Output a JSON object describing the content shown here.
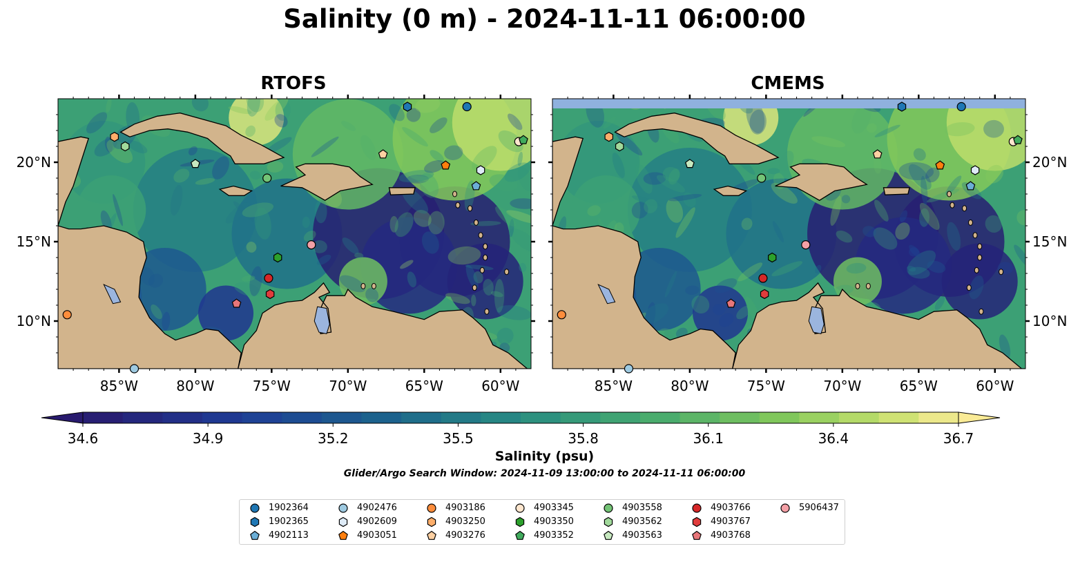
{
  "title": "Salinity (0 m) - 2024-11-11 06:00:00",
  "panels": [
    {
      "title": "RTOFS",
      "top_strip": false
    },
    {
      "title": "CMEMS",
      "top_strip": true
    }
  ],
  "map_extent": {
    "lon": [
      -89,
      -58
    ],
    "lat": [
      7,
      24
    ]
  },
  "longitude_ticks": [
    "85°W",
    "80°W",
    "75°W",
    "70°W",
    "65°W",
    "60°W"
  ],
  "latitude_ticks": [
    "10°N",
    "15°N",
    "20°N"
  ],
  "colorbar": {
    "label": "Salinity (psu)",
    "ticks": [
      "34.6",
      "34.9",
      "35.2",
      "35.5",
      "35.8",
      "36.1",
      "36.4",
      "36.7"
    ],
    "range": [
      34.6,
      36.7
    ],
    "extend": "both",
    "colormap": "haline-like dark blue to yellow"
  },
  "search_window": "Glider/Argo Search Window: 2024-11-09 13:00:00 to 2024-11-11 06:00:00",
  "colors": {
    "land": "#d2b48c",
    "lake": "#9bb5de",
    "no_data_strip": "#8fb1de"
  },
  "legend": [
    {
      "id": "1902364",
      "marker": "circle",
      "color": "#1f77b4"
    },
    {
      "id": "1902365",
      "marker": "hexagon",
      "color": "#1f77b4"
    },
    {
      "id": "4902113",
      "marker": "pentagon",
      "color": "#6baed6"
    },
    {
      "id": "4902476",
      "marker": "circle",
      "color": "#9ecae1"
    },
    {
      "id": "4902609",
      "marker": "hexagon",
      "color": "#deebf7"
    },
    {
      "id": "4903051",
      "marker": "pentagon",
      "color": "#ff7f0e"
    },
    {
      "id": "4903186",
      "marker": "circle",
      "color": "#fd8d3c"
    },
    {
      "id": "4903250",
      "marker": "hexagon",
      "color": "#fdae6b"
    },
    {
      "id": "4903276",
      "marker": "pentagon",
      "color": "#fdd0a2"
    },
    {
      "id": "4903345",
      "marker": "circle",
      "color": "#fee6ce"
    },
    {
      "id": "4903350",
      "marker": "hexagon",
      "color": "#2ca02c"
    },
    {
      "id": "4903352",
      "marker": "pentagon",
      "color": "#41ab5d"
    },
    {
      "id": "4903558",
      "marker": "circle",
      "color": "#74c476"
    },
    {
      "id": "4903562",
      "marker": "hexagon",
      "color": "#a1d99b"
    },
    {
      "id": "4903563",
      "marker": "pentagon",
      "color": "#c7e9c0"
    },
    {
      "id": "4903766",
      "marker": "circle",
      "color": "#d62728"
    },
    {
      "id": "4903767",
      "marker": "hexagon",
      "color": "#e03c3c"
    },
    {
      "id": "4903768",
      "marker": "pentagon",
      "color": "#e8767a"
    },
    {
      "id": "5906437",
      "marker": "circle",
      "color": "#f4a0a6"
    }
  ],
  "observations": [
    {
      "id": "1902364",
      "lon": -62.2,
      "lat": 23.5
    },
    {
      "id": "1902365",
      "lon": -66.1,
      "lat": 23.5
    },
    {
      "id": "4902113",
      "lon": -61.6,
      "lat": 18.5
    },
    {
      "id": "4902476",
      "lon": -84.0,
      "lat": 7.0
    },
    {
      "id": "4902609",
      "lon": -61.3,
      "lat": 19.5
    },
    {
      "id": "4903051",
      "lon": -63.6,
      "lat": 19.8
    },
    {
      "id": "4903186",
      "lon": -88.4,
      "lat": 10.4
    },
    {
      "id": "4903250",
      "lon": -85.3,
      "lat": 21.6
    },
    {
      "id": "4903276",
      "lon": -67.7,
      "lat": 20.5
    },
    {
      "id": "4903345",
      "lon": -58.8,
      "lat": 21.3
    },
    {
      "id": "4903350",
      "lon": -74.6,
      "lat": 14.0
    },
    {
      "id": "4903352",
      "lon": -58.5,
      "lat": 21.4
    },
    {
      "id": "4903558",
      "lon": -75.3,
      "lat": 19.0
    },
    {
      "id": "4903562",
      "lon": -84.6,
      "lat": 21.0
    },
    {
      "id": "4903563",
      "lon": -80.0,
      "lat": 19.9
    },
    {
      "id": "4903766",
      "lon": -75.2,
      "lat": 12.7
    },
    {
      "id": "4903767",
      "lon": -75.1,
      "lat": 11.7
    },
    {
      "id": "4903768",
      "lon": -77.3,
      "lat": 11.1
    },
    {
      "id": "5906437",
      "lon": -72.4,
      "lat": 14.8
    }
  ]
}
